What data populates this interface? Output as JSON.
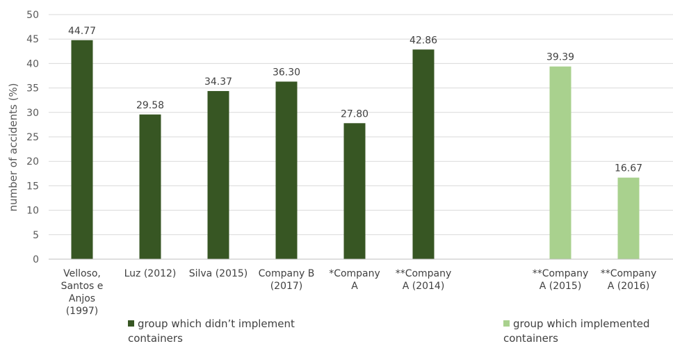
{
  "chart_data": {
    "type": "bar",
    "title": "",
    "ylabel": "number  of accidents (%)",
    "xlabel": "",
    "ylim": [
      0,
      50
    ],
    "yticks": [
      0,
      5,
      10,
      15,
      20,
      25,
      30,
      35,
      40,
      45,
      50
    ],
    "grid": true,
    "legend_position": "bottom",
    "series": [
      {
        "name": "group which didn’t implement containers",
        "color": "#375623",
        "categories": [
          [
            "Velloso,",
            "Santos e",
            "Anjos",
            "(1997)"
          ],
          [
            "Luz (2012)"
          ],
          [
            "Silva (2015)"
          ],
          [
            "Company B",
            "(2017)"
          ],
          [
            "*Company",
            "A"
          ],
          [
            "**Company",
            "A (2014)"
          ]
        ],
        "values": [
          44.77,
          29.58,
          34.37,
          36.3,
          27.8,
          42.86
        ],
        "labels": [
          "44.77",
          "29.58",
          "34.37",
          "36.30",
          "27.80",
          "42.86"
        ]
      },
      {
        "name": "group which implemented containers",
        "color": "#A9D18E",
        "categories": [
          [
            "**Company",
            "A (2015)"
          ],
          [
            "**Company",
            "A (2016)"
          ]
        ],
        "values": [
          39.39,
          16.67
        ],
        "labels": [
          "39.39",
          "16.67"
        ]
      }
    ]
  }
}
